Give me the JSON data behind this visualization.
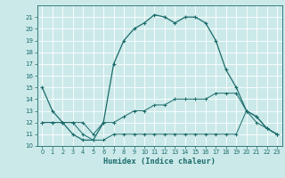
{
  "xlabel": "Humidex (Indice chaleur)",
  "xlim": [
    -0.5,
    23.5
  ],
  "ylim": [
    10,
    22
  ],
  "yticks": [
    10,
    11,
    12,
    13,
    14,
    15,
    16,
    17,
    18,
    19,
    20,
    21
  ],
  "xticks": [
    0,
    1,
    2,
    3,
    4,
    5,
    6,
    7,
    8,
    9,
    10,
    11,
    12,
    13,
    14,
    15,
    16,
    17,
    18,
    19,
    20,
    21,
    22,
    23
  ],
  "bg_color": "#cce9e9",
  "line_color": "#1a6b6b",
  "grid_color": "#ffffff",
  "series1_x": [
    0,
    1,
    2,
    3,
    4,
    5,
    6,
    7,
    8,
    9,
    10,
    11,
    12,
    13,
    14,
    15,
    16,
    17,
    18,
    19,
    20,
    21,
    22,
    23
  ],
  "series1_y": [
    15,
    13,
    12,
    11,
    10.5,
    10.5,
    12,
    17,
    19,
    20,
    20.5,
    21.2,
    21,
    20.5,
    21,
    21,
    20.5,
    19,
    16.5,
    15,
    13,
    12.5,
    11.5,
    11
  ],
  "series2_x": [
    0,
    1,
    2,
    3,
    4,
    5,
    6,
    7,
    8,
    9,
    10,
    11,
    12,
    13,
    14,
    15,
    16,
    17,
    18,
    19,
    20,
    21,
    22,
    23
  ],
  "series2_y": [
    12,
    12,
    12,
    12,
    12,
    11,
    12,
    12,
    12.5,
    13,
    13,
    13.5,
    13.5,
    14,
    14,
    14,
    14,
    14.5,
    14.5,
    14.5,
    13,
    12.5,
    11.5,
    11
  ],
  "series3_x": [
    0,
    1,
    2,
    3,
    4,
    5,
    6,
    7,
    8,
    9,
    10,
    11,
    12,
    13,
    14,
    15,
    16,
    17,
    18,
    19,
    20,
    21,
    22,
    23
  ],
  "series3_y": [
    12,
    12,
    12,
    12,
    11,
    10.5,
    10.5,
    11,
    11,
    11,
    11,
    11,
    11,
    11,
    11,
    11,
    11,
    11,
    11,
    11,
    13,
    12,
    11.5,
    11
  ]
}
